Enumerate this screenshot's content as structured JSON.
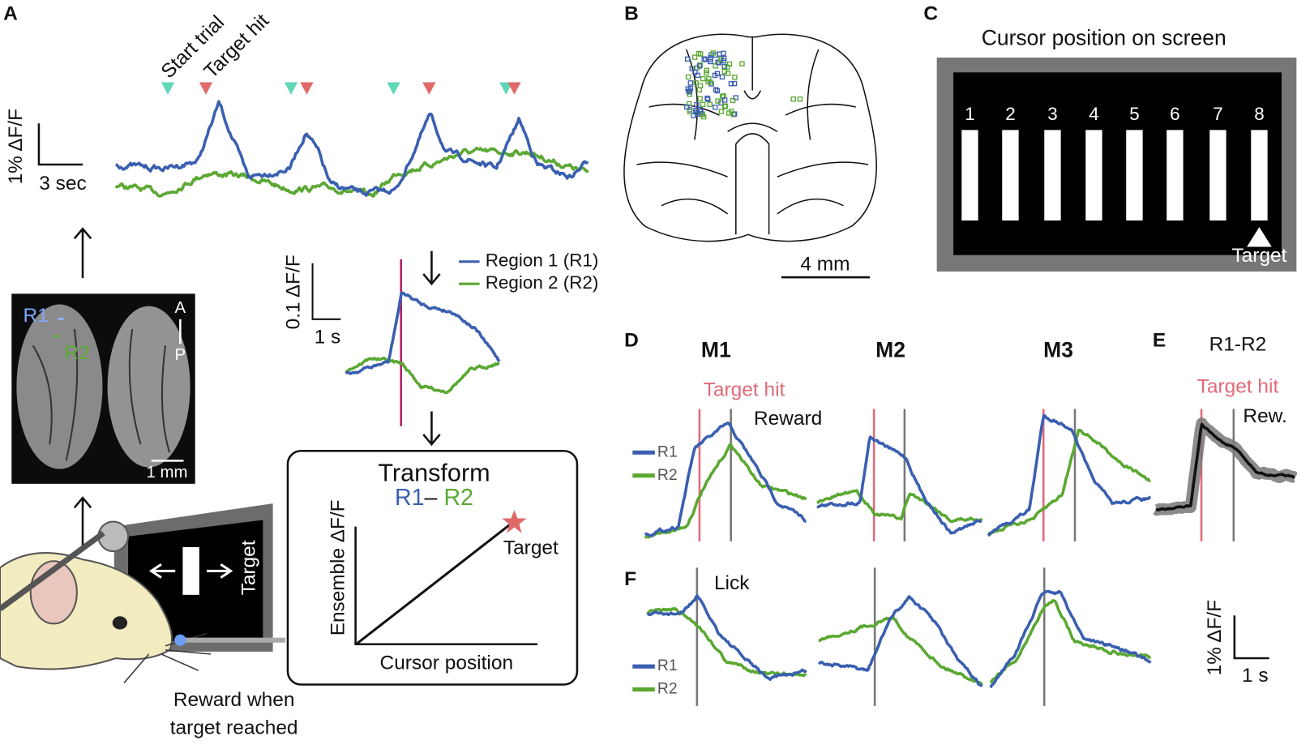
{
  "panels": {
    "A": {
      "letter": "A",
      "event_labels": [
        "Start trial",
        "Target hit"
      ],
      "scale_y": "1% ΔF/F",
      "scale_x": "3 sec",
      "brain_labels": {
        "r1": "R1",
        "r2": "R2",
        "a": "A",
        "p": "P",
        "scale": "1 mm"
      },
      "inset_scale_y": "0.1 ΔF/F",
      "inset_scale_x": "1 s",
      "legend": [
        "Region 1 (R1)",
        "Region 2 (R2)"
      ],
      "transform": {
        "title": "Transform",
        "r1": "R1",
        "minus": "–",
        "r2": "R2",
        "y_label": "Ensemble  ΔF/F",
        "x_label": "Cursor position",
        "target": "Target"
      },
      "screen_target": "Target",
      "reward": [
        "Reward when",
        "target reached"
      ]
    },
    "B": {
      "letter": "B",
      "scale": "4 mm"
    },
    "C": {
      "letter": "C",
      "title": "Cursor position on screen",
      "positions": [
        "1",
        "2",
        "3",
        "4",
        "5",
        "6",
        "7",
        "8"
      ],
      "target": "Target"
    },
    "D": {
      "letter": "D",
      "mice": [
        "M1",
        "M2",
        "M3"
      ],
      "target_hit": "Target hit",
      "reward": "Reward",
      "legend": [
        "R1",
        "R2"
      ]
    },
    "E": {
      "letter": "E",
      "title": "R1-R2",
      "target_hit": "Target hit",
      "reward": "Rew."
    },
    "F": {
      "letter": "F",
      "lick": "Lick",
      "legend": [
        "R1",
        "R2"
      ],
      "scale_y": "1% ΔF/F",
      "scale_x": "1 s"
    }
  }
}
